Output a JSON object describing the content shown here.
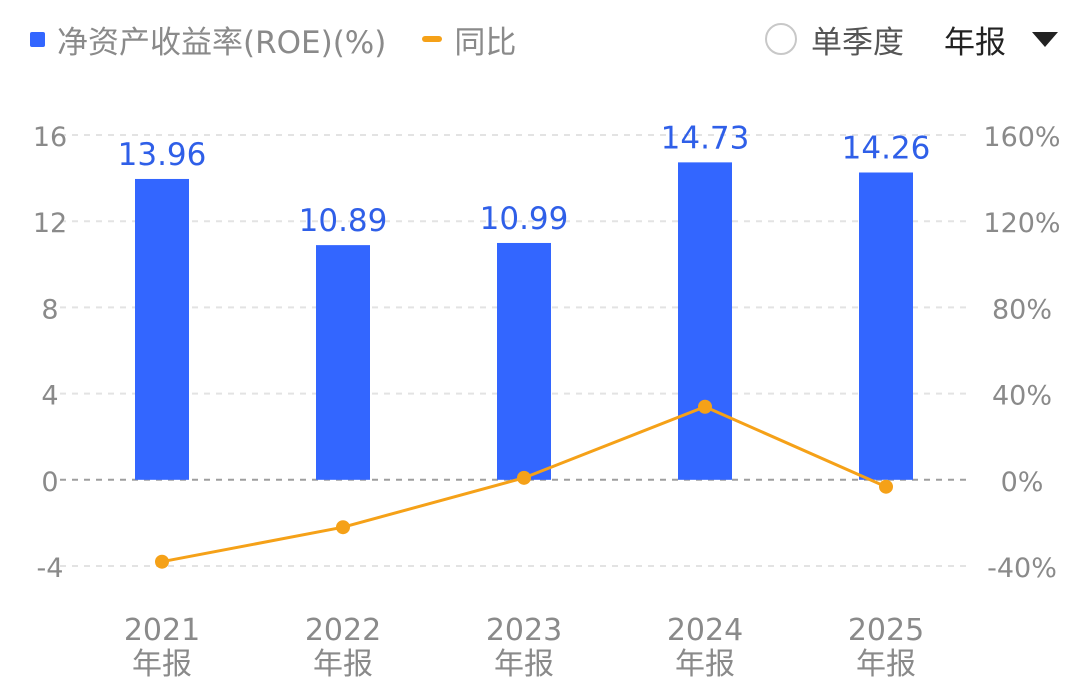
{
  "legend": {
    "bar_label": "净资产收益率(ROE)(%)",
    "line_label": "同比"
  },
  "controls": {
    "single_quarter_label": "单季度",
    "period_label": "年报"
  },
  "colors": {
    "bar": "#3366ff",
    "line": "#f5a118",
    "axis_text": "#8a8a8a",
    "value_label": "#2f5fe8",
    "grid": "#e3e3e3",
    "zero_line": "#9e9e9e"
  },
  "chart_data": {
    "type": "bar",
    "categories": [
      {
        "year": "2021",
        "period": "年报"
      },
      {
        "year": "2022",
        "period": "年报"
      },
      {
        "year": "2023",
        "period": "年报"
      },
      {
        "year": "2024",
        "period": "年报"
      },
      {
        "year": "2025",
        "period": "年报"
      }
    ],
    "series": [
      {
        "name": "净资产收益率(ROE)(%)",
        "type": "bar",
        "axis": "left",
        "values": [
          13.96,
          10.89,
          10.99,
          14.73,
          14.26
        ],
        "labels": [
          "13.96",
          "10.89",
          "10.99",
          "14.73",
          "14.26"
        ]
      },
      {
        "name": "同比",
        "type": "line",
        "axis": "right",
        "unit": "%",
        "values": [
          -38,
          -22,
          0.9,
          33.9,
          -3.2
        ]
      }
    ],
    "left_axis": {
      "ticks": [
        16,
        12,
        8,
        4,
        0,
        -4
      ],
      "tick_labels": [
        "16",
        "12",
        "8",
        "4",
        "0",
        "-4"
      ],
      "range": [
        -4,
        16
      ]
    },
    "right_axis": {
      "ticks": [
        160,
        120,
        80,
        40,
        0,
        -40
      ],
      "tick_labels": [
        "160%",
        "120%",
        "80%",
        "40%",
        "0%",
        "-40%"
      ],
      "range": [
        -40,
        160
      ]
    },
    "grid": true
  }
}
